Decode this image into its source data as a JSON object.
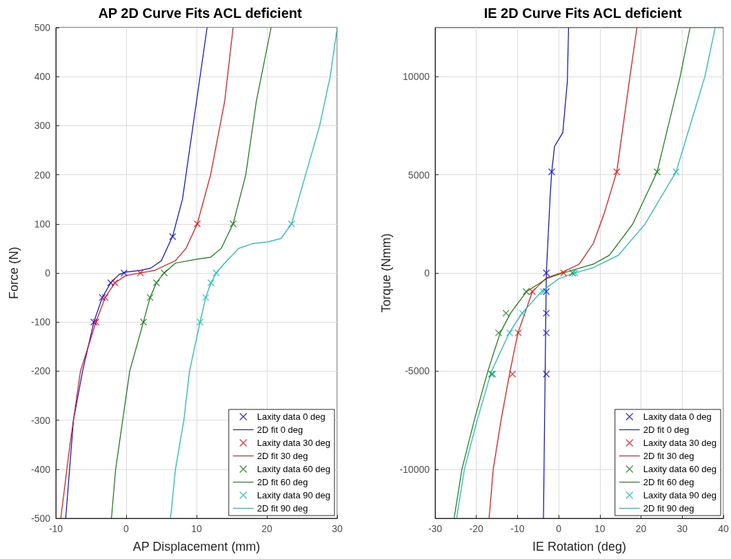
{
  "chart_data": [
    {
      "type": "scatter",
      "title": "AP 2D Curve Fits ACL deficient",
      "xlabel": "AP Displacement (mm)",
      "ylabel": "Force (N)",
      "xlim": [
        -10,
        30
      ],
      "xticks": [
        -10,
        0,
        10,
        20,
        30
      ],
      "ylim": [
        -500,
        500
      ],
      "yticks": [
        -500,
        -400,
        -300,
        -200,
        -100,
        0,
        100,
        200,
        300,
        400,
        500
      ],
      "grid": true,
      "legend": "bottom right",
      "series": [
        {
          "name": "Laxity data 0 deg",
          "color": "#0000ff",
          "marker": "cross",
          "x": [
            -4.6,
            -3.4,
            -2.2,
            -0.3,
            6.6
          ],
          "values": [
            -100,
            -50,
            -20,
            0,
            74
          ]
        },
        {
          "type": "line",
          "name": "2D fit 0 deg",
          "color": "#0000ff",
          "marker": "none",
          "x": [
            -8.6,
            -7.5,
            -6.2,
            -4.6,
            -3.4,
            -2.2,
            -1,
            0,
            2,
            3.5,
            5,
            6.6,
            8,
            9.5,
            11.5
          ],
          "values": [
            -500,
            -300,
            -200,
            -100,
            -50,
            -20,
            -3,
            2,
            5,
            10,
            25,
            75,
            150,
            300,
            500
          ]
        },
        {
          "name": "Laxity data 30 deg",
          "color": "#ff0000",
          "marker": "cross",
          "x": [
            -4.3,
            -3,
            -1.6,
            2,
            10.1
          ],
          "values": [
            -100,
            -50,
            -20,
            0,
            100
          ]
        },
        {
          "type": "line",
          "name": "2D fit 30 deg",
          "color": "#ff0000",
          "marker": "none",
          "x": [
            -9.3,
            -8,
            -6.5,
            -4.3,
            -3,
            -1.6,
            0,
            2,
            4,
            5.5,
            7,
            8.5,
            10.1,
            12,
            14,
            15.2
          ],
          "values": [
            -500,
            -350,
            -200,
            -100,
            -50,
            -20,
            -5,
            0,
            5,
            15,
            25,
            50,
            100,
            200,
            350,
            500
          ]
        },
        {
          "name": "Laxity data 60 deg",
          "color": "#008000",
          "marker": "cross",
          "x": [
            2.45,
            3.4,
            4.3,
            5.4,
            15.2
          ],
          "values": [
            -100,
            -50,
            -20,
            0,
            100
          ]
        },
        {
          "type": "line",
          "name": "2D fit 60 deg",
          "color": "#008000",
          "marker": "none",
          "x": [
            -2.1,
            -1.5,
            -0.5,
            0.5,
            2.45,
            3.4,
            4.3,
            5.4,
            7,
            10,
            12,
            13.5,
            15.2,
            17,
            18.5,
            20.6
          ],
          "values": [
            -500,
            -400,
            -300,
            -200,
            -100,
            -50,
            -20,
            0,
            20,
            28,
            32,
            50,
            100,
            200,
            350,
            500
          ]
        },
        {
          "name": "Laxity data 90 deg",
          "color": "#00bfbf",
          "marker": "cross",
          "x": [
            10.5,
            11.3,
            12.05,
            12.8,
            23.5
          ],
          "values": [
            -100,
            -50,
            -20,
            0,
            100
          ]
        },
        {
          "type": "line",
          "name": "2D fit 90 deg",
          "color": "#00bfbf",
          "marker": "none",
          "x": [
            6.3,
            7,
            8.2,
            9,
            10.5,
            11.3,
            12.05,
            12.8,
            14,
            16,
            18,
            20,
            22,
            23.5,
            25.5,
            27.5,
            29,
            30
          ],
          "values": [
            -500,
            -400,
            -300,
            -200,
            -100,
            -50,
            -20,
            0,
            20,
            50,
            60,
            63,
            70,
            100,
            200,
            300,
            400,
            500
          ]
        }
      ]
    },
    {
      "type": "scatter",
      "title": "IE 2D Curve Fits ACL deficient",
      "xlabel": "IE Rotation (deg)",
      "ylabel": "Torque (Nmm)",
      "xlim": [
        -30,
        40
      ],
      "xticks": [
        -30,
        -20,
        -10,
        0,
        10,
        20,
        30,
        40
      ],
      "ylim": [
        -12500,
        12500
      ],
      "yticks": [
        -10000,
        -5000,
        0,
        5000,
        10000
      ],
      "grid": true,
      "legend": "bottom right",
      "series": [
        {
          "name": "Laxity data 0 deg",
          "color": "#0000ff",
          "marker": "cross",
          "x": [
            -3,
            -3,
            -3,
            -3,
            -3,
            -1.7
          ],
          "values": [
            -5150,
            -3050,
            -2050,
            -950,
            0,
            5150
          ]
        },
        {
          "type": "line",
          "name": "2D fit 0 deg",
          "color": "#0000ff",
          "marker": "none",
          "x": [
            -3.7,
            -3.3,
            -3,
            -2.1,
            -1.7,
            -1,
            1,
            2.1,
            2.4
          ],
          "values": [
            -12500,
            -5150,
            0,
            3800,
            5150,
            6450,
            7150,
            9750,
            12500
          ]
        },
        {
          "name": "Laxity data 30 deg",
          "color": "#ff0000",
          "marker": "cross",
          "x": [
            -11.2,
            -9.8,
            -6.4,
            1.2,
            14.1
          ],
          "values": [
            -5150,
            -3050,
            -950,
            0,
            5150
          ]
        },
        {
          "type": "line",
          "name": "2D fit 30 deg",
          "color": "#ff0000",
          "marker": "none",
          "x": [
            -16.9,
            -15.9,
            -14,
            -11.8,
            -9.9,
            -8.2,
            -6.4,
            -3,
            0.5,
            5,
            8.4,
            11,
            14.1,
            17.3,
            19
          ],
          "values": [
            -12500,
            -10000,
            -7500,
            -5000,
            -3050,
            -2050,
            -950,
            -250,
            0,
            450,
            1500,
            3000,
            5150,
            10000,
            12500
          ]
        },
        {
          "name": "Laxity data 60 deg",
          "color": "#008000",
          "marker": "cross",
          "x": [
            -16.3,
            -14.6,
            -12.8,
            -7.9,
            3.35,
            23.9
          ],
          "values": [
            -5150,
            -3050,
            -2050,
            -950,
            0,
            5150
          ]
        },
        {
          "type": "line",
          "name": "2D fit 60 deg",
          "color": "#008000",
          "marker": "none",
          "x": [
            -25.4,
            -23.5,
            -20.5,
            -17.2,
            -14.2,
            -11.7,
            -7.8,
            -2.8,
            1.1,
            8.4,
            12.3,
            18,
            23.9,
            29.5,
            31.9
          ],
          "values": [
            -12500,
            -10000,
            -7500,
            -5000,
            -3050,
            -2050,
            -950,
            -280,
            0,
            450,
            900,
            2500,
            5150,
            10000,
            12500
          ]
        },
        {
          "name": "Laxity data 90 deg",
          "color": "#00bfbf",
          "marker": "cross",
          "x": [
            -16,
            -11.9,
            -8.8,
            -3.7,
            3.9,
            28.5
          ],
          "values": [
            -5150,
            -3050,
            -2050,
            -950,
            0,
            5150
          ]
        },
        {
          "type": "line",
          "name": "2D fit 90 deg",
          "color": "#00bfbf",
          "marker": "none",
          "x": [
            -24.8,
            -22.9,
            -19.8,
            -16.3,
            -12,
            -8.9,
            -4.2,
            0,
            3.9,
            8.4,
            14.5,
            21,
            28.5,
            35.5,
            38
          ],
          "values": [
            -12500,
            -10000,
            -7500,
            -5000,
            -3050,
            -2050,
            -950,
            -300,
            0,
            270,
            900,
            2500,
            5150,
            10000,
            12500
          ]
        }
      ]
    }
  ]
}
